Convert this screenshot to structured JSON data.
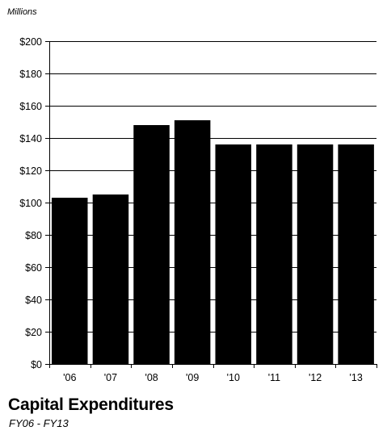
{
  "chart_data": {
    "type": "bar",
    "title": "Capital Expenditures",
    "subtitle": "FY06 - FY13",
    "unit_label": "Millions",
    "categories": [
      "'06",
      "'07",
      "'08",
      "'09",
      "'10",
      "'11",
      "'12",
      "'13"
    ],
    "values": [
      103,
      105,
      148,
      151,
      136,
      136,
      136,
      136
    ],
    "ylim": [
      0,
      200
    ],
    "y_ticks": [
      0,
      20,
      40,
      60,
      80,
      100,
      120,
      140,
      160,
      180,
      200
    ],
    "y_tick_labels": [
      "$0",
      "$20",
      "$40",
      "$60",
      "$80",
      "$100",
      "$120",
      "$140",
      "$160",
      "$180",
      "$200"
    ],
    "grid": true,
    "bar_color": "#000000",
    "grid_color": "#000000"
  }
}
